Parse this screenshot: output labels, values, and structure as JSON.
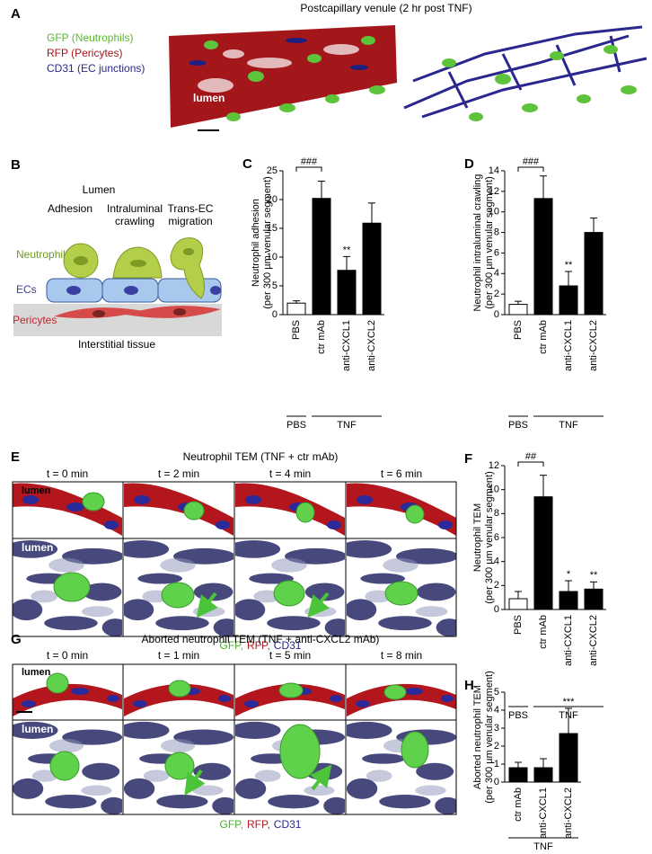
{
  "panel_a": {
    "label": "A",
    "title": "Postcapillary venule (2 hr post TNF)",
    "legend": [
      {
        "name": "GFP (Neutrophils)",
        "color": "#5cb531"
      },
      {
        "name": "RFP (Pericytes)",
        "color": "#a3171b"
      },
      {
        "name": "CD31 (EC junctions)",
        "color": "#2a278f"
      }
    ],
    "lumen": "lumen"
  },
  "panel_b": {
    "label": "B",
    "lumen": "Lumen",
    "steps": [
      [
        "Adhesion"
      ],
      [
        "Intraluminal",
        "crawling"
      ],
      [
        "Trans-EC",
        "migration"
      ]
    ],
    "neutrophil": "Neutrophil",
    "ecs": "ECs",
    "pericytes": "Pericytes",
    "tissue": "Interstitial tissue"
  },
  "panel_e": {
    "label": "E",
    "title": "Neutrophil TEM (TNF + ctr mAb)",
    "times": [
      "t = 0 min",
      "t = 2 min",
      "t = 4 min",
      "t = 6 min"
    ],
    "lumen": "lumen",
    "stains": [
      {
        "name": "GFP,",
        "color": "#4caf2a"
      },
      {
        "name": "RFP,",
        "color": "#b0191e"
      },
      {
        "name": "CD31",
        "color": "#2a278f"
      }
    ]
  },
  "panel_g": {
    "label": "G",
    "title": "Aborted neutrophil TEM (TNF + anti-CXCL2 mAb)",
    "times": [
      "t = 0 min",
      "t = 1 min",
      "t = 5 min",
      "t = 8 min"
    ],
    "lumen": "lumen",
    "stains": [
      {
        "name": "GFP,",
        "color": "#4caf2a"
      },
      {
        "name": "RFP,",
        "color": "#b0191e"
      },
      {
        "name": "CD31",
        "color": "#2a278f"
      }
    ]
  },
  "chart_data": [
    {
      "type": "bar",
      "label": "C",
      "ylabel": [
        "Neutrophil adhesion",
        "(per 300 µm venular segment)"
      ],
      "categories": [
        "PBS",
        "ctr mAb",
        "anti-CXCL1",
        "anti-CXCL2"
      ],
      "values": [
        2.0,
        20.2,
        7.7,
        15.9
      ],
      "errors": [
        0.4,
        3.0,
        2.4,
        3.5
      ],
      "colors": [
        "#ffffff",
        "#000000",
        "#000000",
        "#000000"
      ],
      "significance": [
        null,
        null,
        "**",
        null
      ],
      "bracket": "###",
      "groups": [
        {
          "name": "PBS",
          "categories": [
            "PBS"
          ]
        },
        {
          "name": "TNF",
          "categories": [
            "ctr mAb",
            "anti-CXCL1",
            "anti-CXCL2"
          ]
        }
      ],
      "ylim": [
        0,
        25
      ],
      "yticks": [
        0,
        5,
        10,
        15,
        20,
        25
      ]
    },
    {
      "type": "bar",
      "label": "D",
      "ylabel": [
        "Neutrophil intraluminal crawling",
        "(per 300 µm venular segment)"
      ],
      "categories": [
        "PBS",
        "ctr mAb",
        "anti-CXCL1",
        "anti-CXCL2"
      ],
      "values": [
        1.0,
        11.3,
        2.8,
        8.0
      ],
      "errors": [
        0.3,
        2.2,
        1.4,
        1.4
      ],
      "colors": [
        "#ffffff",
        "#000000",
        "#000000",
        "#000000"
      ],
      "significance": [
        null,
        null,
        "**",
        null
      ],
      "bracket": "###",
      "groups": [
        {
          "name": "PBS",
          "categories": [
            "PBS"
          ]
        },
        {
          "name": "TNF",
          "categories": [
            "ctr mAb",
            "anti-CXCL1",
            "anti-CXCL2"
          ]
        }
      ],
      "ylim": [
        0,
        14
      ],
      "yticks": [
        0,
        2,
        4,
        6,
        8,
        10,
        12,
        14
      ]
    },
    {
      "type": "bar",
      "label": "F",
      "ylabel": [
        "Neutrophil TEM",
        "(per 300 µm venular segment)"
      ],
      "categories": [
        "PBS",
        "ctr mAb",
        "anti-CXCL1",
        "anti-CXCL2"
      ],
      "values": [
        0.9,
        9.4,
        1.5,
        1.7
      ],
      "errors": [
        0.6,
        1.8,
        0.9,
        0.6
      ],
      "colors": [
        "#ffffff",
        "#000000",
        "#000000",
        "#000000"
      ],
      "significance": [
        null,
        null,
        "*",
        "**"
      ],
      "bracket": "##",
      "groups": [
        {
          "name": "PBS",
          "categories": [
            "PBS"
          ]
        },
        {
          "name": "TNF",
          "categories": [
            "ctr mAb",
            "anti-CXCL1",
            "anti-CXCL2"
          ]
        }
      ],
      "ylim": [
        0,
        12
      ],
      "yticks": [
        0,
        2,
        4,
        6,
        8,
        10,
        12
      ]
    },
    {
      "type": "bar",
      "label": "H",
      "ylabel": [
        "Aborted neutrophil TEM",
        "(per 300 µm venular segment)"
      ],
      "categories": [
        "ctr mAb",
        "anti-CXCL1",
        "anti-CXCL2"
      ],
      "values": [
        0.8,
        0.8,
        2.7
      ],
      "errors": [
        0.3,
        0.5,
        1.4
      ],
      "colors": [
        "#000000",
        "#000000",
        "#000000"
      ],
      "significance": [
        null,
        null,
        "***"
      ],
      "groups": [
        {
          "name": "TNF",
          "categories": [
            "ctr mAb",
            "anti-CXCL1",
            "anti-CXCL2"
          ]
        }
      ],
      "ylim": [
        0,
        5
      ],
      "yticks": [
        0,
        1,
        2,
        3,
        4,
        5
      ]
    }
  ]
}
